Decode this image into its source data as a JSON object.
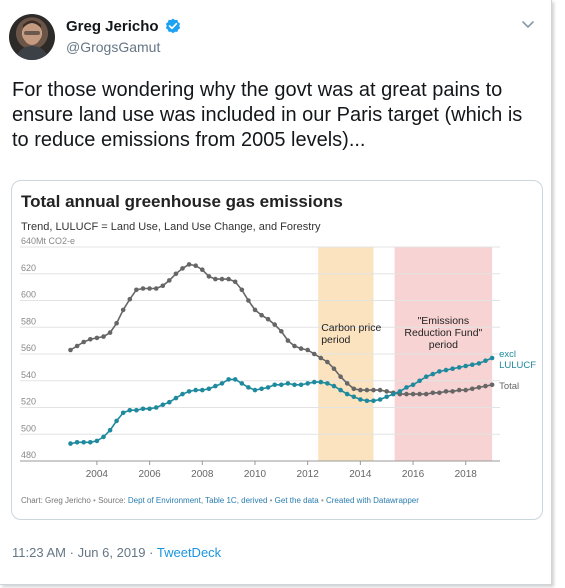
{
  "tweet": {
    "author_name": "Greg Jericho",
    "author_handle": "@GrogsGamut",
    "text": "For those wondering why the govt was at great pains to ensure land use was included in our Paris target (which is to reduce emissions from 2005 levels)...",
    "time": "11:23 AM",
    "date": "Jun 6, 2019",
    "separator": "·",
    "source": "TweetDeck",
    "verified_icon": "verified-badge-icon",
    "accent_color": "#1da1f2"
  },
  "chart_data": {
    "type": "line",
    "title": "Total annual greenhouse gas emissions",
    "subtitle": "Trend, LULUCF = Land Use, Land Use Change, and Forestry",
    "y_unit_label": "640Mt CO2-e",
    "ylim": [
      480,
      640
    ],
    "y_ticks": [
      "480",
      "500",
      "520",
      "540",
      "560",
      "580",
      "600",
      "620"
    ],
    "xlim": [
      2002.6,
      2019.3
    ],
    "x_ticks": [
      "2004",
      "2006",
      "2008",
      "2010",
      "2012",
      "2014",
      "2016",
      "2018"
    ],
    "grid": true,
    "series": [
      {
        "name": "Total",
        "color": "#666666",
        "points": [
          [
            2003.0,
            563
          ],
          [
            2003.25,
            566
          ],
          [
            2003.5,
            569
          ],
          [
            2003.75,
            571
          ],
          [
            2004.0,
            572
          ],
          [
            2004.25,
            573
          ],
          [
            2004.5,
            576
          ],
          [
            2004.75,
            583
          ],
          [
            2005.0,
            593
          ],
          [
            2005.25,
            601
          ],
          [
            2005.5,
            608
          ],
          [
            2005.75,
            609
          ],
          [
            2006.0,
            609
          ],
          [
            2006.25,
            609
          ],
          [
            2006.5,
            611
          ],
          [
            2006.75,
            615
          ],
          [
            2007.0,
            620
          ],
          [
            2007.25,
            624
          ],
          [
            2007.5,
            627
          ],
          [
            2007.75,
            626
          ],
          [
            2008.0,
            623
          ],
          [
            2008.25,
            618
          ],
          [
            2008.5,
            616
          ],
          [
            2008.75,
            616
          ],
          [
            2009.0,
            616
          ],
          [
            2009.25,
            614
          ],
          [
            2009.5,
            608
          ],
          [
            2009.75,
            600
          ],
          [
            2010.0,
            593
          ],
          [
            2010.25,
            589
          ],
          [
            2010.5,
            586
          ],
          [
            2010.75,
            582
          ],
          [
            2011.0,
            577
          ],
          [
            2011.25,
            570
          ],
          [
            2011.5,
            566
          ],
          [
            2011.75,
            564
          ],
          [
            2012.0,
            563
          ],
          [
            2012.25,
            560
          ],
          [
            2012.5,
            557
          ],
          [
            2012.75,
            554
          ],
          [
            2013.0,
            549
          ],
          [
            2013.25,
            543
          ],
          [
            2013.5,
            538
          ],
          [
            2013.75,
            534
          ],
          [
            2014.0,
            533
          ],
          [
            2014.25,
            533
          ],
          [
            2014.5,
            533
          ],
          [
            2014.75,
            533
          ],
          [
            2015.0,
            532
          ],
          [
            2015.25,
            531
          ],
          [
            2015.5,
            530
          ],
          [
            2015.75,
            530
          ],
          [
            2016.0,
            530
          ],
          [
            2016.25,
            530
          ],
          [
            2016.5,
            530
          ],
          [
            2016.75,
            531
          ],
          [
            2017.0,
            531
          ],
          [
            2017.25,
            532
          ],
          [
            2017.5,
            532
          ],
          [
            2017.75,
            533
          ],
          [
            2018.0,
            533
          ],
          [
            2018.25,
            534
          ],
          [
            2018.5,
            535
          ],
          [
            2018.75,
            536
          ],
          [
            2019.0,
            537
          ]
        ]
      },
      {
        "name": "excl LULUCF",
        "color": "#1f8a9e",
        "points": [
          [
            2003.0,
            493
          ],
          [
            2003.25,
            494
          ],
          [
            2003.5,
            494
          ],
          [
            2003.75,
            494
          ],
          [
            2004.0,
            495
          ],
          [
            2004.25,
            498
          ],
          [
            2004.5,
            503
          ],
          [
            2004.75,
            510
          ],
          [
            2005.0,
            516
          ],
          [
            2005.25,
            518
          ],
          [
            2005.5,
            518
          ],
          [
            2005.75,
            519
          ],
          [
            2006.0,
            519
          ],
          [
            2006.25,
            520
          ],
          [
            2006.5,
            522
          ],
          [
            2006.75,
            524
          ],
          [
            2007.0,
            527
          ],
          [
            2007.25,
            530
          ],
          [
            2007.5,
            532
          ],
          [
            2007.75,
            533
          ],
          [
            2008.0,
            533
          ],
          [
            2008.25,
            534
          ],
          [
            2008.5,
            536
          ],
          [
            2008.75,
            538
          ],
          [
            2009.0,
            541
          ],
          [
            2009.25,
            541
          ],
          [
            2009.5,
            538
          ],
          [
            2009.75,
            535
          ],
          [
            2010.0,
            533
          ],
          [
            2010.25,
            534
          ],
          [
            2010.5,
            535
          ],
          [
            2010.75,
            537
          ],
          [
            2011.0,
            537
          ],
          [
            2011.25,
            538
          ],
          [
            2011.5,
            537
          ],
          [
            2011.75,
            537
          ],
          [
            2012.0,
            538
          ],
          [
            2012.25,
            539
          ],
          [
            2012.5,
            539
          ],
          [
            2012.75,
            538
          ],
          [
            2013.0,
            536
          ],
          [
            2013.25,
            533
          ],
          [
            2013.5,
            530
          ],
          [
            2013.75,
            528
          ],
          [
            2014.0,
            526
          ],
          [
            2014.25,
            525
          ],
          [
            2014.5,
            525
          ],
          [
            2014.75,
            526
          ],
          [
            2015.0,
            528
          ],
          [
            2015.25,
            530
          ],
          [
            2015.5,
            532
          ],
          [
            2015.75,
            535
          ],
          [
            2016.0,
            537
          ],
          [
            2016.25,
            540
          ],
          [
            2016.5,
            543
          ],
          [
            2016.75,
            545
          ],
          [
            2017.0,
            547
          ],
          [
            2017.25,
            548
          ],
          [
            2017.5,
            549
          ],
          [
            2017.75,
            550
          ],
          [
            2018.0,
            551
          ],
          [
            2018.25,
            552
          ],
          [
            2018.5,
            553
          ],
          [
            2018.75,
            555
          ],
          [
            2019.0,
            557
          ]
        ]
      }
    ],
    "bands": [
      {
        "label_lines": [
          "Carbon price",
          "period"
        ],
        "x_start": 2012.4,
        "x_end": 2014.5,
        "color": "#fbe3c0"
      },
      {
        "label_lines": [
          "\"Emissions",
          "Reduction Fund\"",
          "period"
        ],
        "x_start": 2015.3,
        "x_end": 2019.0,
        "color": "#f7d3d3"
      }
    ],
    "series_labels": {
      "excl": [
        "excl",
        "LULUCF"
      ],
      "total": "Total"
    },
    "footer": {
      "prefix": "Chart: Greg Jericho",
      "source_label": "Source:",
      "source_link": "Dept of Environment, Table 1C, derived",
      "get_data": "Get the data",
      "created": "Created with Datawrapper",
      "dot": "•"
    }
  }
}
